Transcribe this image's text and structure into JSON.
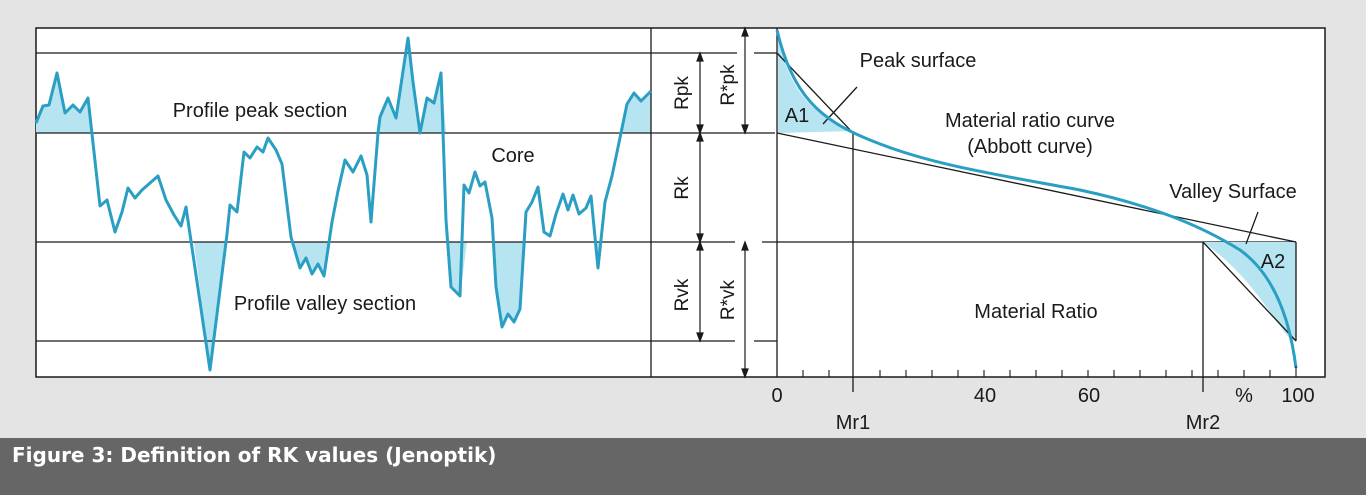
{
  "caption": "Figure 3: Definition of RK values (Jenoptik)",
  "colors": {
    "curve": "#2a9fc3",
    "fill": "#b6e4f0",
    "line": "#1a1a1a",
    "background": "#e4e4e4",
    "panel": "#ffffff",
    "caption_bar": "#666666",
    "caption_text": "#ffffff"
  },
  "left_panel": {
    "peak_label": "Profile peak section",
    "core_label": "Core",
    "valley_label": "Profile valley section"
  },
  "dimensions": {
    "rpk": "Rpk",
    "rpk_star": "R*pk",
    "rk": "Rk",
    "rvk": "Rvk",
    "rvk_star": "R*vk"
  },
  "right_panel": {
    "peak_surface": "Peak surface",
    "a1": "A1",
    "curve_title_1": "Material ratio curve",
    "curve_title_2": "(Abbott curve)",
    "valley_surface": "Valley Surface",
    "a2": "A2",
    "material_ratio": "Material Ratio"
  },
  "axis": {
    "tick_labels": [
      "0",
      "40",
      "60",
      "%",
      "100"
    ],
    "mr1": "Mr1",
    "mr2": "Mr2"
  }
}
